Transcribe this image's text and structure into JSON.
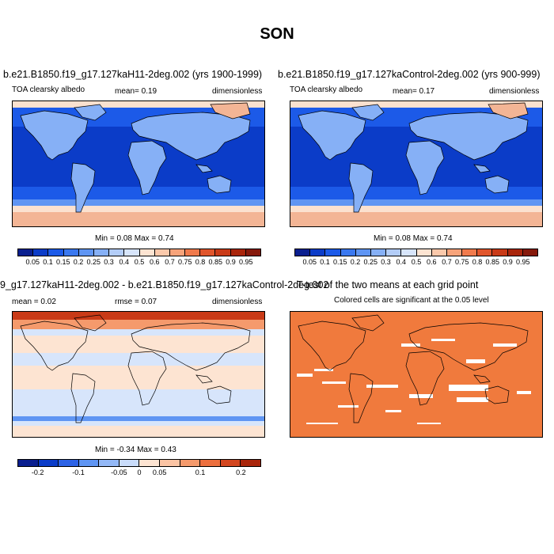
{
  "page_title": "SON",
  "panels": {
    "top_left": {
      "title": "b.e21.B1850.f19_g17.127kaH11-2deg.002 (yrs 1900-1999)",
      "variable": "TOA clearsky albedo",
      "mean": "mean=  0.19",
      "units": "dimensionless",
      "minmax": "Min =  0.08 Max =  0.74"
    },
    "top_right": {
      "title": "b.e21.B1850.f19_g17.127kaControl-2deg.002 (yrs 900-999)",
      "variable": "TOA clearsky albedo",
      "mean": "mean=  0.17",
      "units": "dimensionless",
      "minmax": "Min =  0.08 Max =  0.74"
    },
    "bottom_left": {
      "title": "9_g17.127kaH11-2deg.002 - b.e21.B1850.f19_g17.127kaControl-2deg.002",
      "mean": "mean =  0.02",
      "rmse": "rmse =  0.07",
      "units": "dimensionless",
      "minmax": "Min =  -0.34 Max =  0.43"
    },
    "bottom_right": {
      "title": "T-test of the two means at each grid point",
      "subtitle": "Colored cells are significant at the 0.05 level"
    }
  },
  "colorbars": {
    "albedo": {
      "colors": [
        "#0a1f8f",
        "#0b3cc8",
        "#1c5ae8",
        "#3a78f0",
        "#5f95f3",
        "#86b0f6",
        "#b3cdf8",
        "#d7e5fb",
        "#fde4d2",
        "#fbc9ab",
        "#f7a37a",
        "#f07a4c",
        "#e0552b",
        "#c93a17",
        "#a9250b",
        "#86190b"
      ],
      "labels": [
        "0.05",
        "0.1",
        "0.15",
        "0.2",
        "0.25",
        "0.3",
        "0.4",
        "0.5",
        "0.6",
        "0.7",
        "0.75",
        "0.8",
        "0.85",
        "0.9",
        "0.95"
      ]
    },
    "diff": {
      "colors": [
        "#0a1f8f",
        "#0b3cc8",
        "#2d63e6",
        "#5f95f3",
        "#93b8f6",
        "#c9dcfa",
        "#fde4d2",
        "#fbc4a4",
        "#f59a6c",
        "#ec6f3e",
        "#d3461f",
        "#a9250b"
      ],
      "labels": [
        "-0.2",
        "-0.1",
        "-0.05",
        "0",
        "0.05",
        "0.1",
        "0.2"
      ],
      "label_positions": [
        1,
        3,
        5,
        6,
        7,
        9,
        11
      ]
    }
  },
  "map_colors": {
    "polar_albedo": "#f3b595",
    "ice_edge": "#fbe1cf",
    "ocean_low": "#0b3cc8",
    "ocean_mid": "#1c5ae8",
    "ocean_band": "#5f95f3",
    "land": "#86b0f6",
    "diff_pos_strong": "#c93a17",
    "diff_pos": "#f59a6c",
    "diff_pos_weak": "#fde4d2",
    "diff_neg_weak": "#d7e5fb",
    "diff_neg": "#5f95f3",
    "ttest": "#f07a3d",
    "white": "#ffffff"
  }
}
